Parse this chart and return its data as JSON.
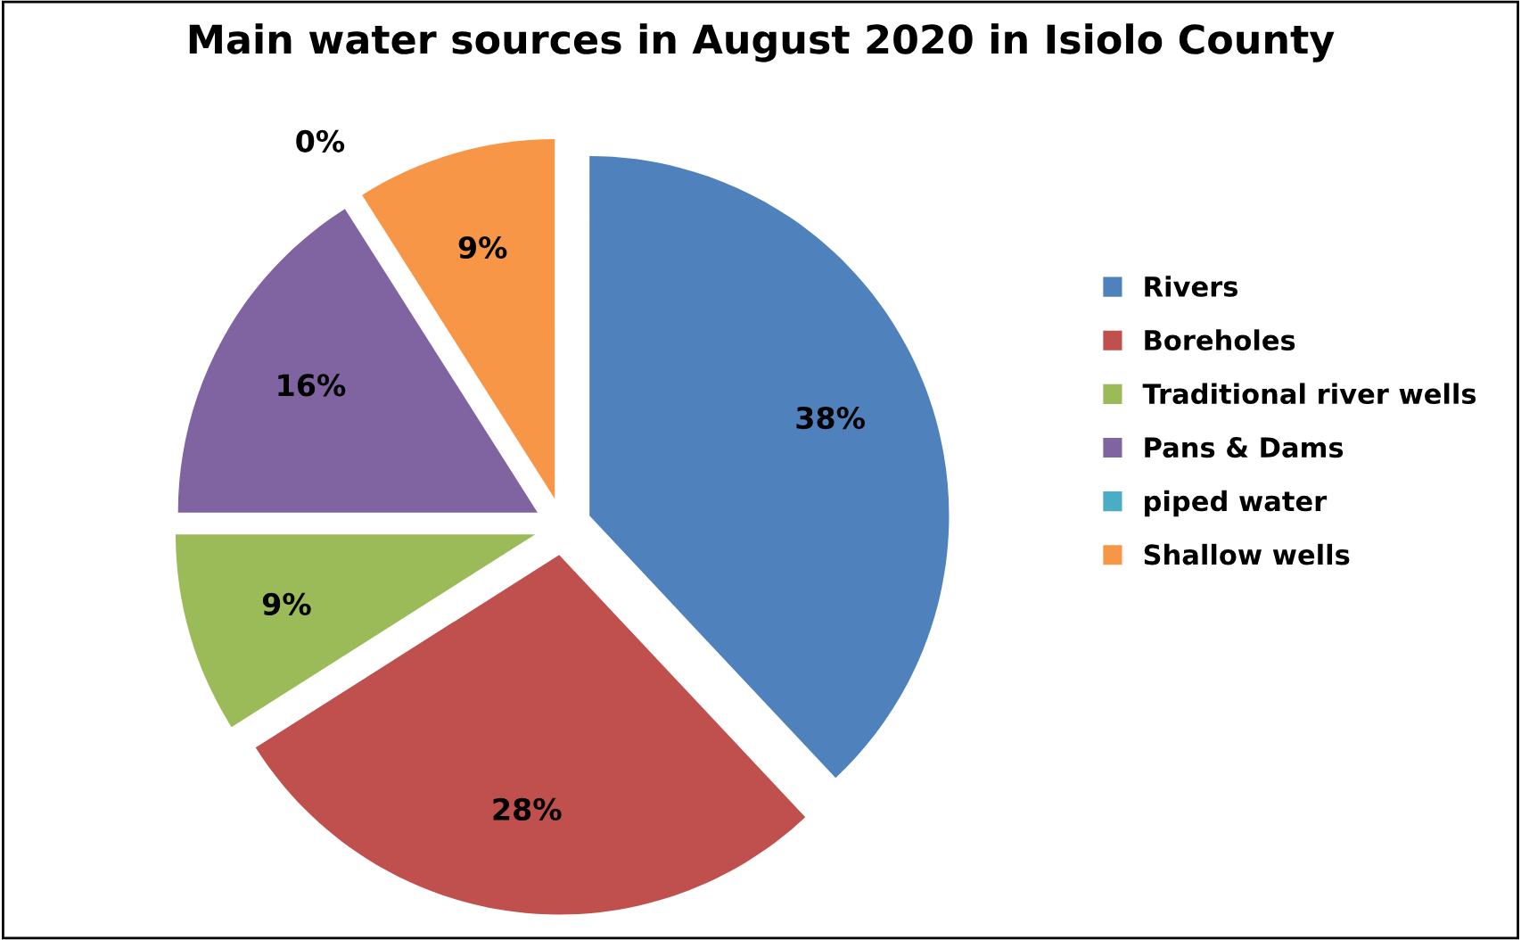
{
  "chart_data": {
    "type": "pie",
    "title": "Main water sources in August 2020 in Isiolo County",
    "categories": [
      "Rivers",
      "Boreholes",
      "Traditional river wells",
      "Pans & Dams",
      "piped water",
      "Shallow wells"
    ],
    "values": [
      38,
      28,
      9,
      16,
      0,
      9
    ],
    "value_labels": [
      "38%",
      "28%",
      "9%",
      "16%",
      "0%",
      "9%"
    ],
    "colors": [
      "#4f81bd",
      "#c0504d",
      "#9bbb59",
      "#8064a2",
      "#4bacc6",
      "#f79646"
    ],
    "legend": "right"
  }
}
